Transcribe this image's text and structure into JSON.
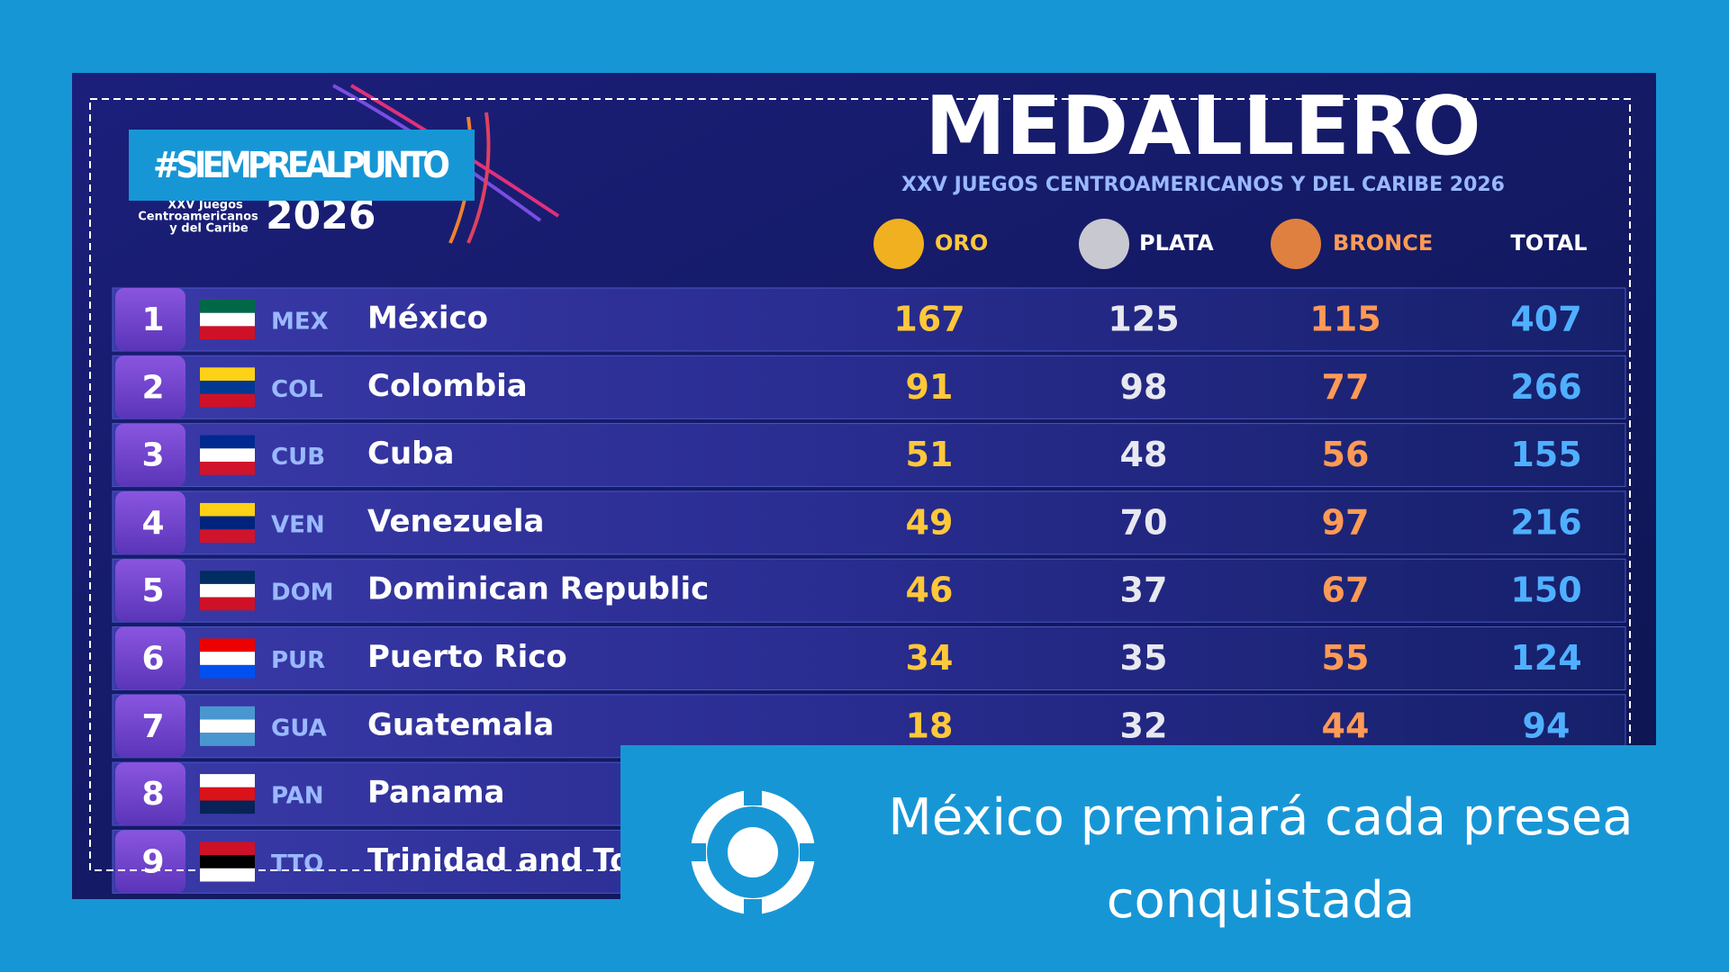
{
  "hashtag": "#SIEMPREALPUNTO",
  "logo": {
    "line1": "XXV Juegos",
    "line2": "Centroamericanos",
    "line3": "y del Caribe",
    "year": "2026"
  },
  "header": {
    "title": "MEDALLERO",
    "subtitle": "XXV JUEGOS CENTROAMERICANOS Y DEL CARIBE 2026"
  },
  "columns": {
    "gold": "ORO",
    "silver": "PLATA",
    "bronze": "BRONCE",
    "total": "TOTAL"
  },
  "table": {
    "rows": [
      {
        "rank": "1",
        "code": "MEX",
        "name": "México",
        "gold": "167",
        "silver": "125",
        "bronze": "115",
        "total": "407"
      },
      {
        "rank": "2",
        "code": "COL",
        "name": "Colombia",
        "gold": "91",
        "silver": "98",
        "bronze": "77",
        "total": "266"
      },
      {
        "rank": "3",
        "code": "CUB",
        "name": "Cuba",
        "gold": "51",
        "silver": "48",
        "bronze": "56",
        "total": "155"
      },
      {
        "rank": "4",
        "code": "VEN",
        "name": "Venezuela",
        "gold": "49",
        "silver": "70",
        "bronze": "97",
        "total": "216"
      },
      {
        "rank": "5",
        "code": "DOM",
        "name": "Dominican Republic",
        "gold": "46",
        "silver": "37",
        "bronze": "67",
        "total": "150"
      },
      {
        "rank": "6",
        "code": "PUR",
        "name": "Puerto Rico",
        "gold": "34",
        "silver": "35",
        "bronze": "55",
        "total": "124"
      },
      {
        "rank": "7",
        "code": "GUA",
        "name": "Guatemala",
        "gold": "18",
        "silver": "32",
        "bronze": "44",
        "total": "94"
      },
      {
        "rank": "8",
        "code": "PAN",
        "name": "Panama"
      },
      {
        "rank": "9",
        "code": "TTO",
        "name": "Trinidad and Tobago"
      }
    ]
  },
  "headline": {
    "line1": "México premiará cada presea",
    "line2": "conquistada"
  }
}
